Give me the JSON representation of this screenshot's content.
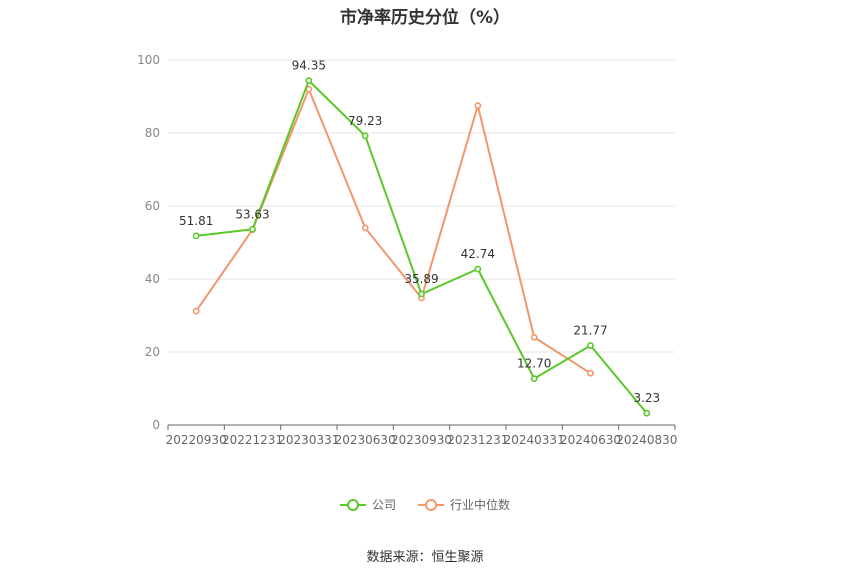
{
  "chart_data": {
    "type": "line",
    "title": "市净率历史分位（%）",
    "categories": [
      "20220930",
      "20221231",
      "20230331",
      "20230630",
      "20230930",
      "20231231",
      "20240331",
      "20240630",
      "20240830"
    ],
    "series": [
      {
        "name": "公司",
        "color": "#5ac828",
        "values": [
          51.81,
          53.63,
          94.35,
          79.23,
          35.89,
          42.74,
          12.7,
          21.77,
          3.23
        ],
        "labels": true
      },
      {
        "name": "行业中位数",
        "color": "#f2966b",
        "values": [
          31.2,
          53.5,
          92.0,
          54.0,
          34.8,
          87.5,
          24.0,
          14.2,
          null
        ],
        "labels": false
      }
    ],
    "ylim": [
      0,
      100
    ],
    "yticks": [
      0,
      20,
      40,
      60,
      80,
      100
    ],
    "grid": true,
    "legend_position": "bottom"
  },
  "source": "数据来源：恒生聚源"
}
